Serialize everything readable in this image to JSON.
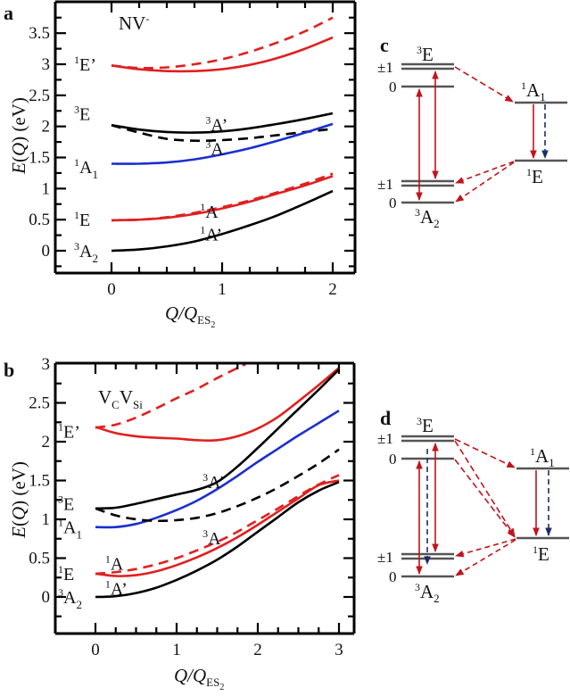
{
  "figure": {
    "panels": [
      "a",
      "b",
      "c",
      "d"
    ]
  },
  "chart_data": [
    {
      "id": "a",
      "type": "line",
      "panel_label": "a",
      "annotation": "NV-",
      "annotation_main": "NV",
      "annotation_sup": "-",
      "xlabel": "Q/Q_ES2",
      "ylabel": "E(Q) (eV)",
      "xlim": [
        -0.5,
        2.2
      ],
      "ylim": [
        -0.36,
        4.0
      ],
      "xticks": [
        0,
        1,
        2
      ],
      "xtick_labels": [
        "0",
        "1",
        "2"
      ],
      "x_minor_step": 0.25,
      "yticks": [
        0,
        0.5,
        1,
        1.5,
        2,
        2.5,
        3,
        3.5
      ],
      "ytick_labels": [
        "0",
        "0.5",
        "1",
        "1.5",
        "2",
        "2.5",
        "3",
        "3.5"
      ],
      "y_minor_step": 0.25,
      "state_labels": [
        {
          "sup": "1",
          "main": "E’",
          "sub": "",
          "y": 3.0
        },
        {
          "sup": "3",
          "main": "E",
          "sub": "",
          "y": 2.2
        },
        {
          "sup": "1",
          "main": "A",
          "sub": "1",
          "y": 1.35
        },
        {
          "sup": "1",
          "main": "E",
          "sub": "",
          "y": 0.5
        },
        {
          "sup": "3",
          "main": "A",
          "sub": "2",
          "y": 0.0
        }
      ],
      "branch_labels": [
        {
          "sup": "3",
          "main": "A’",
          "x": 0.85,
          "y": 2.02
        },
        {
          "sup": "3",
          "main": "A",
          "x": 0.85,
          "y": 1.63
        },
        {
          "sup": "1",
          "main": "A",
          "x": 0.8,
          "y": 0.62
        },
        {
          "sup": "1",
          "main": "A’",
          "x": 0.8,
          "y": 0.25
        }
      ],
      "series": [
        {
          "name": "1E' solid",
          "color": "#e02020",
          "dash": false,
          "x": [
            0,
            0.25,
            0.5,
            0.75,
            1.0,
            1.25,
            1.5,
            1.75,
            2.0
          ],
          "y": [
            2.98,
            2.92,
            2.89,
            2.89,
            2.92,
            2.99,
            3.1,
            3.25,
            3.43
          ]
        },
        {
          "name": "1E' dashed",
          "color": "#e02020",
          "dash": true,
          "x": [
            0,
            0.25,
            0.5,
            0.75,
            1.0,
            1.25,
            1.5,
            1.75,
            2.0
          ],
          "y": [
            2.98,
            2.94,
            2.95,
            3.0,
            3.08,
            3.2,
            3.35,
            3.53,
            3.75
          ]
        },
        {
          "name": "3A'",
          "color": "#000000",
          "dash": false,
          "x": [
            0,
            0.25,
            0.5,
            0.75,
            1.0,
            1.25,
            1.5,
            1.75,
            2.0
          ],
          "y": [
            2.02,
            1.95,
            1.91,
            1.9,
            1.92,
            1.97,
            2.04,
            2.12,
            2.21
          ]
        },
        {
          "name": "3A",
          "color": "#000000",
          "dash": true,
          "x": [
            0,
            0.25,
            0.5,
            0.75,
            1.0,
            1.25,
            1.5,
            1.75,
            2.0
          ],
          "y": [
            2.02,
            1.9,
            1.8,
            1.77,
            1.78,
            1.81,
            1.86,
            1.91,
            1.96
          ]
        },
        {
          "name": "1A1",
          "color": "#1a2fd0",
          "dash": false,
          "x": [
            0,
            0.25,
            0.5,
            0.75,
            1.0,
            1.25,
            1.5,
            1.75,
            2.0
          ],
          "y": [
            1.4,
            1.4,
            1.42,
            1.47,
            1.55,
            1.65,
            1.77,
            1.9,
            2.04
          ]
        },
        {
          "name": "1A dashed",
          "color": "#e02020",
          "dash": true,
          "x": [
            0,
            0.25,
            0.5,
            0.75,
            1.0,
            1.25,
            1.5,
            1.75,
            2.0
          ],
          "y": [
            0.49,
            0.5,
            0.54,
            0.61,
            0.7,
            0.81,
            0.94,
            1.08,
            1.24
          ]
        },
        {
          "name": "1A' solid",
          "color": "#e02020",
          "dash": false,
          "x": [
            0,
            0.25,
            0.5,
            0.75,
            1.0,
            1.25,
            1.5,
            1.75,
            2.0
          ],
          "y": [
            0.49,
            0.5,
            0.53,
            0.59,
            0.68,
            0.79,
            0.92,
            1.05,
            1.2
          ]
        },
        {
          "name": "3A2",
          "color": "#000000",
          "dash": false,
          "x": [
            0,
            0.25,
            0.5,
            0.75,
            1.0,
            1.25,
            1.5,
            1.75,
            2.0
          ],
          "y": [
            0.0,
            0.02,
            0.07,
            0.15,
            0.27,
            0.41,
            0.57,
            0.76,
            0.96
          ]
        }
      ]
    },
    {
      "id": "b",
      "type": "line",
      "panel_label": "b",
      "annotation": "VCVSi",
      "annotation_parts": [
        {
          "main": "V",
          "sub": "C"
        },
        {
          "main": "V",
          "sub": "Si"
        }
      ],
      "xlabel": "Q/Q_ES2",
      "ylabel": "E(Q) (eV)",
      "xlim": [
        -0.49,
        3.19
      ],
      "ylim": [
        -0.47,
        3.0
      ],
      "xticks": [
        0,
        1,
        2,
        3
      ],
      "xtick_labels": [
        "0",
        "1",
        "2",
        "3"
      ],
      "x_minor_step": 0.25,
      "yticks": [
        0,
        0.5,
        1,
        1.5,
        2,
        2.5,
        3
      ],
      "ytick_labels": [
        "0",
        "0.5",
        "1",
        "1.5",
        "2",
        "2.5",
        "3"
      ],
      "y_minor_step": 0.25,
      "state_labels": [
        {
          "sup": "1",
          "main": "E’",
          "sub": "",
          "y": 2.13
        },
        {
          "sup": "3",
          "main": "E",
          "sub": "",
          "y": 1.2
        },
        {
          "sup": "1",
          "main": "A",
          "sub": "1",
          "y": 0.9
        },
        {
          "sup": "1",
          "main": "E",
          "sub": "",
          "y": 0.3
        },
        {
          "sup": "3",
          "main": "A",
          "sub": "2",
          "y": 0.0
        }
      ],
      "branch_labels": [
        {
          "sup": "3",
          "main": "A’",
          "x": 1.32,
          "y": 1.47
        },
        {
          "sup": "3",
          "main": "A",
          "x": 1.32,
          "y": 0.75
        },
        {
          "sup": "1",
          "main": "A",
          "x": 0.12,
          "y": 0.42
        },
        {
          "sup": "1",
          "main": "A’",
          "x": 0.12,
          "y": 0.1
        }
      ],
      "series": [
        {
          "name": "1E' dashed",
          "color": "#e02020",
          "dash": true,
          "x": [
            0,
            0.25,
            0.5,
            0.75,
            1.0,
            1.25,
            1.5,
            1.75,
            1.85
          ],
          "y": [
            2.18,
            2.22,
            2.31,
            2.43,
            2.56,
            2.68,
            2.82,
            2.95,
            3.0
          ]
        },
        {
          "name": "1E' solid",
          "color": "#e02020",
          "dash": false,
          "x": [
            0,
            0.25,
            0.5,
            0.75,
            1.0,
            1.25,
            1.5,
            1.75,
            2.0,
            2.25,
            2.5,
            2.75,
            3.0
          ],
          "y": [
            2.19,
            2.11,
            2.07,
            2.05,
            2.04,
            2.02,
            2.02,
            2.07,
            2.17,
            2.32,
            2.52,
            2.73,
            2.95
          ]
        },
        {
          "name": "3A'",
          "color": "#000000",
          "dash": false,
          "x": [
            0,
            0.25,
            0.5,
            0.75,
            1.0,
            1.25,
            1.5,
            1.75,
            2.0,
            2.25,
            2.5,
            2.75,
            3.0
          ],
          "y": [
            1.14,
            1.15,
            1.2,
            1.26,
            1.32,
            1.38,
            1.48,
            1.68,
            1.92,
            2.17,
            2.42,
            2.67,
            2.93
          ]
        },
        {
          "name": "1A1",
          "color": "#1a2fd0",
          "dash": false,
          "x": [
            0,
            0.25,
            0.5,
            0.75,
            1.0,
            1.25,
            1.5,
            1.75,
            2.0,
            2.25,
            2.5,
            2.75,
            3.0
          ],
          "y": [
            0.9,
            0.9,
            0.94,
            1.02,
            1.12,
            1.24,
            1.39,
            1.56,
            1.74,
            1.91,
            2.08,
            2.24,
            2.4
          ]
        },
        {
          "name": "3A",
          "color": "#000000",
          "dash": true,
          "x": [
            0,
            0.25,
            0.5,
            0.75,
            1.0,
            1.25,
            1.5,
            1.75,
            2.0,
            2.25,
            2.5,
            2.75,
            3.0
          ],
          "y": [
            1.14,
            1.05,
            1.0,
            0.98,
            0.99,
            1.02,
            1.08,
            1.17,
            1.28,
            1.41,
            1.56,
            1.72,
            1.9
          ]
        },
        {
          "name": "1A dashed",
          "color": "#e02020",
          "dash": true,
          "x": [
            0,
            0.25,
            0.5,
            0.75,
            1.0,
            1.25,
            1.5,
            1.75,
            2.0,
            2.25,
            2.5,
            2.75,
            3.0
          ],
          "y": [
            0.3,
            0.32,
            0.36,
            0.42,
            0.5,
            0.6,
            0.71,
            0.84,
            0.99,
            1.14,
            1.3,
            1.45,
            1.57
          ]
        },
        {
          "name": "1A' solid",
          "color": "#e02020",
          "dash": false,
          "x": [
            0,
            0.25,
            0.5,
            0.75,
            1.0,
            1.25,
            1.5,
            1.75,
            2.0,
            2.25,
            2.5,
            2.75,
            3.0
          ],
          "y": [
            0.3,
            0.27,
            0.28,
            0.33,
            0.41,
            0.51,
            0.63,
            0.77,
            0.93,
            1.1,
            1.27,
            1.44,
            1.5
          ]
        },
        {
          "name": "3A2",
          "color": "#000000",
          "dash": false,
          "x": [
            0,
            0.25,
            0.5,
            0.75,
            1.0,
            1.25,
            1.5,
            1.75,
            2.0,
            2.25,
            2.5,
            2.75,
            3.0
          ],
          "y": [
            0.0,
            0.01,
            0.05,
            0.12,
            0.22,
            0.34,
            0.48,
            0.65,
            0.84,
            1.03,
            1.22,
            1.37,
            1.48
          ]
        }
      ]
    }
  ],
  "diagrams": {
    "c": {
      "panel_label": "c",
      "triplet_excited": {
        "sup": "3",
        "main": "E",
        "sub": ""
      },
      "triplet_ground": {
        "sup": "3",
        "main": "A",
        "sub": "2"
      },
      "singlet_upper": {
        "sup": "1",
        "main": "A",
        "sub": "1"
      },
      "singlet_lower": {
        "sup": "1",
        "main": "E",
        "sub": ""
      },
      "ms_plus_minus": "±1",
      "ms_zero": "0"
    },
    "d": {
      "panel_label": "d",
      "triplet_excited": {
        "sup": "3",
        "main": "E",
        "sub": ""
      },
      "triplet_ground": {
        "sup": "3",
        "main": "A",
        "sub": "2"
      },
      "singlet_upper": {
        "sup": "1",
        "main": "A",
        "sub": "1"
      },
      "singlet_lower": {
        "sup": "1",
        "main": "E",
        "sub": ""
      },
      "ms_plus_minus": "±1",
      "ms_zero": "0"
    },
    "colors": {
      "radiative": "#c0141c",
      "isc": "#c0141c",
      "nonradiative": "#1a2f6a",
      "level": "#555555"
    }
  }
}
